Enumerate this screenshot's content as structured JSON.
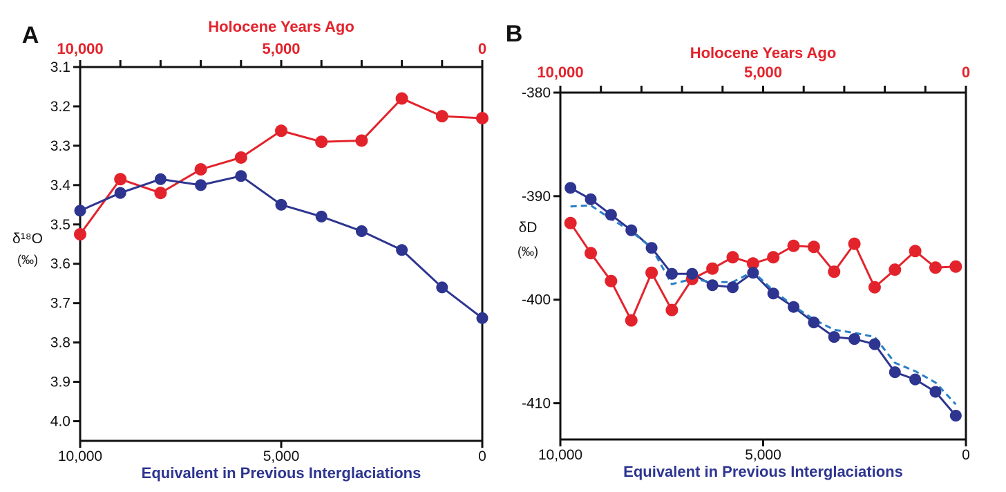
{
  "colors": {
    "holocene": "#e3232c",
    "interglacial": "#2d3590",
    "dashed": "#2a7fc4",
    "axis": "#111111"
  },
  "chart_data": [
    {
      "type": "line",
      "panel_label": "A",
      "top_axis_title": "Holocene Years Ago",
      "xlabel": "Equivalent in Previous Interglaciations",
      "ylabel": "δ¹⁸O",
      "ylabel_unit": "(‰)",
      "xlim": [
        10000,
        0
      ],
      "ylim": [
        3.1,
        4.05
      ],
      "y_inverted": true,
      "top_ticks": [
        10000,
        9000,
        8000,
        7000,
        6000,
        5000,
        4000,
        3000,
        2000,
        1000,
        0
      ],
      "top_tick_labels": [
        "10,000",
        "5,000",
        "0"
      ],
      "bottom_tick_labels": [
        "10,000",
        "5,000",
        "0"
      ],
      "y_ticks": [
        3.1,
        3.2,
        3.3,
        3.4,
        3.5,
        3.6,
        3.7,
        3.8,
        3.9,
        4.0
      ],
      "y_tick_labels": [
        "3.1",
        "3.2",
        "3.3",
        "3.4",
        "3.5",
        "3.6",
        "3.7",
        "3.8",
        "3.9",
        "4.0"
      ],
      "series": [
        {
          "color_key": "holocene",
          "x": [
            10000,
            9000,
            8000,
            7000,
            6000,
            5000,
            4000,
            3000,
            2000,
            1000,
            0
          ],
          "y": [
            3.525,
            3.385,
            3.42,
            3.36,
            3.33,
            3.262,
            3.29,
            3.287,
            3.18,
            3.225,
            3.23
          ]
        },
        {
          "color_key": "interglacial",
          "x": [
            10000,
            9000,
            8000,
            7000,
            6000,
            5000,
            4000,
            3000,
            2000,
            1000,
            0
          ],
          "y": [
            3.465,
            3.42,
            3.385,
            3.4,
            3.377,
            3.45,
            3.48,
            3.517,
            3.565,
            3.66,
            3.738
          ]
        }
      ]
    },
    {
      "type": "line",
      "panel_label": "B",
      "top_axis_title": "Holocene Years Ago",
      "xlabel": "Equivalent in Previous Interglaciations",
      "ylabel": "δD",
      "ylabel_unit": "(‰)",
      "xlim": [
        10000,
        0
      ],
      "ylim": [
        -413.5,
        -380
      ],
      "top_ticks": [
        10000,
        9000,
        8000,
        7000,
        6000,
        5000,
        4000,
        3000,
        2000,
        1000,
        0
      ],
      "top_tick_labels": [
        "10,000",
        "5,000",
        "0"
      ],
      "bottom_tick_labels": [
        "10,000",
        "5,000",
        "0"
      ],
      "y_ticks": [
        -380,
        -390,
        -400,
        -410
      ],
      "y_tick_labels": [
        "-380",
        "-390",
        "-400",
        "-410"
      ],
      "series": [
        {
          "color_key": "holocene",
          "x": [
            9750,
            9250,
            8750,
            8250,
            7750,
            7250,
            6750,
            6250,
            5750,
            5250,
            4750,
            4250,
            3750,
            3250,
            2750,
            2250,
            1750,
            1250,
            750,
            250
          ],
          "y": [
            -392.6,
            -395.5,
            -398.2,
            -402.0,
            -397.4,
            -401.0,
            -398.0,
            -397.0,
            -395.9,
            -396.5,
            -395.9,
            -394.8,
            -394.9,
            -397.3,
            -394.6,
            -398.8,
            -397.1,
            -395.3,
            -396.9,
            -396.8
          ]
        },
        {
          "color_key": "interglacial",
          "x": [
            9750,
            9250,
            8750,
            8250,
            7750,
            7250,
            6750,
            6250,
            5750,
            5250,
            4750,
            4250,
            3750,
            3250,
            2750,
            2250,
            1750,
            1250,
            750,
            250
          ],
          "y": [
            -389.2,
            -390.3,
            -391.8,
            -393.3,
            -395.0,
            -397.5,
            -397.5,
            -398.6,
            -398.8,
            -397.4,
            -399.4,
            -400.7,
            -402.2,
            -403.6,
            -403.8,
            -404.3,
            -407.0,
            -407.7,
            -408.9,
            -411.2
          ]
        },
        {
          "color_key": "dashed",
          "dashed": true,
          "x": [
            9750,
            9250,
            8750,
            8250,
            7750,
            7250,
            6750,
            6250,
            5750,
            5250,
            4750,
            4250,
            3750,
            3250,
            2750,
            2250,
            1750,
            1250,
            750,
            250
          ],
          "y": [
            -391.0,
            -390.9,
            -392.2,
            -393.4,
            -395.0,
            -398.5,
            -398.0,
            -398.3,
            -398.3,
            -397.3,
            -399.1,
            -400.6,
            -401.9,
            -402.9,
            -403.2,
            -403.6,
            -406.1,
            -406.9,
            -408.0,
            -410.1
          ]
        }
      ]
    }
  ]
}
